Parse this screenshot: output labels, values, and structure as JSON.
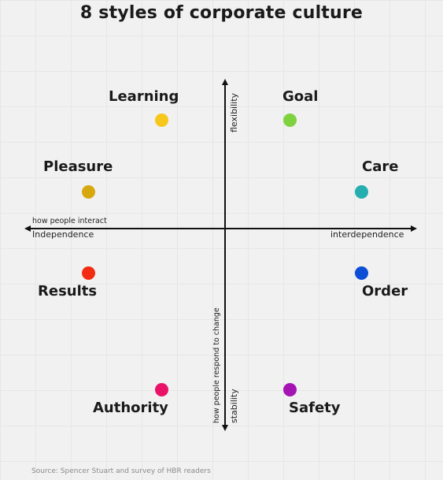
{
  "title": "8 styles of corporate culture",
  "axes": {
    "horizontal_label": "how people interact",
    "left_label": "Independence",
    "right_label": "interdependence",
    "vertical_label": "how people respond to change",
    "top_label": "flexibility",
    "bottom_label": "stability"
  },
  "styles": [
    {
      "name": "Learning",
      "color": "#f7c81b"
    },
    {
      "name": "Goal",
      "color": "#7ed23d"
    },
    {
      "name": "Pleasure",
      "color": "#d7a80e"
    },
    {
      "name": "Care",
      "color": "#24aeb0"
    },
    {
      "name": "Results",
      "color": "#f32b12"
    },
    {
      "name": "Order",
      "color": "#0c4fd6"
    },
    {
      "name": "Authority",
      "color": "#ea1267"
    },
    {
      "name": "Safety",
      "color": "#a513b4"
    }
  ],
  "source": "Source: Spencer Stuart and survey of HBR readers"
}
